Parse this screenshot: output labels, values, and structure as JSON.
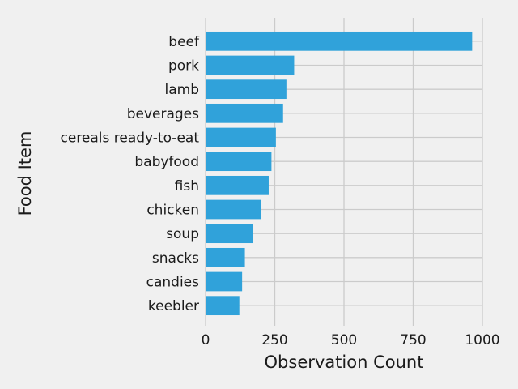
{
  "chart_data": {
    "type": "bar",
    "orientation": "horizontal",
    "categories": [
      "beef",
      "pork",
      "lamb",
      "beverages",
      "cereals ready-to-eat",
      "babyfood",
      "fish",
      "chicken",
      "soup",
      "snacks",
      "candies",
      "keebler"
    ],
    "values": [
      963,
      320,
      292,
      280,
      254,
      238,
      228,
      200,
      172,
      142,
      132,
      122
    ],
    "xlabel": "Observation Count",
    "ylabel": "Food Item",
    "xlim": [
      0,
      1000
    ],
    "xticks": [
      0,
      250,
      500,
      750,
      1000
    ],
    "grid": true,
    "bar_color": "#30a2da",
    "background_color": "#f0f0f0",
    "grid_color": "#cbcbcb"
  }
}
